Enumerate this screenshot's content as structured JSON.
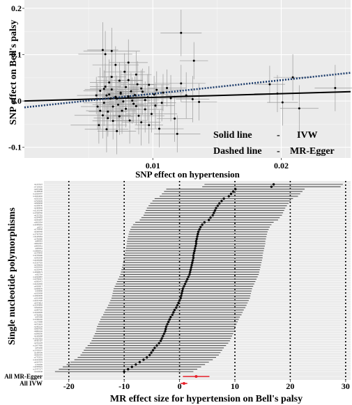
{
  "chart_data": [
    {
      "type": "scatter",
      "title": "",
      "xlabel": "SNP effect on hypertension",
      "ylabel": "SNP effect on Bell's palsy",
      "xlim": [
        0.0,
        0.0254
      ],
      "ylim": [
        -0.123,
        0.218
      ],
      "x_ticks": [
        0.01,
        0.02
      ],
      "x_tick_labels": [
        "0.01",
        "0.02"
      ],
      "y_ticks": [
        -0.1,
        0.0,
        0.1,
        0.2
      ],
      "y_tick_labels": [
        "-0.1",
        "0.0",
        "0.1",
        "0.2"
      ],
      "grid": true,
      "legend": {
        "position": "bottom-right",
        "entries": [
          {
            "label": "Solid line",
            "dash": "-",
            "method": "IVW"
          },
          {
            "label": "Dashed line",
            "dash": "-",
            "method": "MR-Egger"
          }
        ]
      },
      "lines": [
        {
          "method": "IVW",
          "style": "solid",
          "color": "#000000",
          "slope": 0.79,
          "intercept": 0.0
        },
        {
          "method": "MR-Egger",
          "style": "dotted",
          "color": "#1a3a6a",
          "slope": 2.94,
          "intercept": -0.0138
        }
      ],
      "points": [
        {
          "x": 0.0122,
          "y": 0.147,
          "xerr": 0.0016,
          "yerr": 0.05
        },
        {
          "x": 0.0132,
          "y": 0.087,
          "xerr": 0.0011,
          "yerr": 0.04
        },
        {
          "x": 0.0068,
          "y": 0.108,
          "xerr": 0.0022,
          "yerr": 0.05
        },
        {
          "x": 0.0061,
          "y": 0.11,
          "xerr": 0.0012,
          "yerr": 0.06
        },
        {
          "x": 0.0063,
          "y": 0.101,
          "xerr": 0.0021,
          "yerr": 0.05
        },
        {
          "x": 0.0078,
          "y": 0.063,
          "xerr": 0.0016,
          "yerr": 0.04
        },
        {
          "x": 0.0081,
          "y": 0.083,
          "xerr": 0.0015,
          "yerr": 0.05
        },
        {
          "x": 0.0087,
          "y": 0.057,
          "xerr": 0.0012,
          "yerr": 0.05
        },
        {
          "x": 0.0071,
          "y": 0.078,
          "xerr": 0.0018,
          "yerr": 0.04
        },
        {
          "x": 0.0097,
          "y": 0.035,
          "xerr": 0.0016,
          "yerr": 0.04
        },
        {
          "x": 0.0063,
          "y": 0.031,
          "xerr": 0.0012,
          "yerr": 0.05
        },
        {
          "x": 0.0066,
          "y": 0.04,
          "xerr": 0.0015,
          "yerr": 0.05
        },
        {
          "x": 0.0059,
          "y": 0.022,
          "xerr": 0.0013,
          "yerr": 0.05
        },
        {
          "x": 0.0064,
          "y": 0.012,
          "xerr": 0.0017,
          "yerr": 0.04
        },
        {
          "x": 0.0075,
          "y": 0.016,
          "xerr": 0.0011,
          "yerr": 0.05
        },
        {
          "x": 0.0057,
          "y": -0.012,
          "xerr": 0.0013,
          "yerr": 0.05
        },
        {
          "x": 0.0068,
          "y": 0.025,
          "xerr": 0.0021,
          "yerr": 0.05
        },
        {
          "x": 0.0072,
          "y": 0.005,
          "xerr": 0.0013,
          "yerr": 0.05
        },
        {
          "x": 0.0081,
          "y": 0.01,
          "xerr": 0.0013,
          "yerr": 0.05
        },
        {
          "x": 0.0085,
          "y": -0.006,
          "xerr": 0.0019,
          "yerr": 0.04
        },
        {
          "x": 0.0065,
          "y": -0.023,
          "xerr": 0.0015,
          "yerr": 0.05
        },
        {
          "x": 0.0061,
          "y": -0.031,
          "xerr": 0.0022,
          "yerr": 0.05
        },
        {
          "x": 0.0069,
          "y": -0.043,
          "xerr": 0.0016,
          "yerr": 0.04
        },
        {
          "x": 0.0076,
          "y": -0.021,
          "xerr": 0.0011,
          "yerr": 0.05
        },
        {
          "x": 0.0082,
          "y": -0.042,
          "xerr": 0.0014,
          "yerr": 0.05
        },
        {
          "x": 0.0058,
          "y": -0.052,
          "xerr": 0.0022,
          "yerr": 0.04
        },
        {
          "x": 0.0064,
          "y": -0.061,
          "xerr": 0.0017,
          "yerr": 0.05
        },
        {
          "x": 0.0072,
          "y": -0.065,
          "xerr": 0.0015,
          "yerr": 0.05
        },
        {
          "x": 0.0091,
          "y": -0.046,
          "xerr": 0.0015,
          "yerr": 0.05
        },
        {
          "x": 0.0102,
          "y": -0.01,
          "xerr": 0.0015,
          "yerr": 0.05
        },
        {
          "x": 0.0108,
          "y": 0.018,
          "xerr": 0.0016,
          "yerr": 0.04
        },
        {
          "x": 0.0111,
          "y": 0.028,
          "xerr": 0.0015,
          "yerr": 0.04
        },
        {
          "x": 0.0114,
          "y": 0.006,
          "xerr": 0.0017,
          "yerr": 0.05
        },
        {
          "x": 0.0105,
          "y": -0.06,
          "xerr": 0.0019,
          "yerr": 0.04
        },
        {
          "x": 0.0119,
          "y": -0.071,
          "xerr": 0.0018,
          "yerr": 0.04
        },
        {
          "x": 0.0126,
          "y": 0.012,
          "xerr": 0.0016,
          "yerr": 0.05
        },
        {
          "x": 0.0131,
          "y": 0.004,
          "xerr": 0.0013,
          "yerr": 0.05
        },
        {
          "x": 0.0136,
          "y": -0.002,
          "xerr": 0.0014,
          "yerr": 0.04
        },
        {
          "x": 0.0092,
          "y": 0.02,
          "xerr": 0.0022,
          "yerr": 0.05
        },
        {
          "x": 0.0088,
          "y": 0.036,
          "xerr": 0.0013,
          "yerr": 0.05
        },
        {
          "x": 0.0067,
          "y": 0.005,
          "xerr": 0.0014,
          "yerr": 0.05
        },
        {
          "x": 0.0073,
          "y": -0.008,
          "xerr": 0.002,
          "yerr": 0.05
        },
        {
          "x": 0.0079,
          "y": 0.03,
          "xerr": 0.0012,
          "yerr": 0.05
        },
        {
          "x": 0.0084,
          "y": 0.001,
          "xerr": 0.0014,
          "yerr": 0.05
        },
        {
          "x": 0.0096,
          "y": 0.008,
          "xerr": 0.0014,
          "yerr": 0.05
        },
        {
          "x": 0.0099,
          "y": -0.028,
          "xerr": 0.002,
          "yerr": 0.04
        },
        {
          "x": 0.0094,
          "y": -0.018,
          "xerr": 0.0014,
          "yerr": 0.05
        },
        {
          "x": 0.0062,
          "y": -0.004,
          "xerr": 0.0016,
          "yerr": 0.05
        },
        {
          "x": 0.0056,
          "y": 0.012,
          "xerr": 0.0015,
          "yerr": 0.04
        },
        {
          "x": 0.0074,
          "y": 0.044,
          "xerr": 0.0018,
          "yerr": 0.04
        },
        {
          "x": 0.0089,
          "y": -0.032,
          "xerr": 0.002,
          "yerr": 0.04
        },
        {
          "x": 0.0103,
          "y": 0.024,
          "xerr": 0.002,
          "yerr": 0.04
        },
        {
          "x": 0.0117,
          "y": -0.038,
          "xerr": 0.0014,
          "yerr": 0.05
        },
        {
          "x": 0.0122,
          "y": 0.038,
          "xerr": 0.0019,
          "yerr": 0.04
        },
        {
          "x": 0.0209,
          "y": 0.051,
          "xerr": 0.0015,
          "yerr": 0.05
        },
        {
          "x": 0.0191,
          "y": 0.036,
          "xerr": 0.0012,
          "yerr": 0.04
        },
        {
          "x": 0.0242,
          "y": 0.028,
          "xerr": 0.0016,
          "yerr": 0.05
        },
        {
          "x": 0.0214,
          "y": -0.016,
          "xerr": 0.0015,
          "yerr": 0.05
        },
        {
          "x": 0.0197,
          "y": 0.016,
          "xerr": 0.0018,
          "yerr": 0.04
        },
        {
          "x": 0.0201,
          "y": -0.003,
          "xerr": 0.0012,
          "yerr": 0.05
        },
        {
          "x": 0.0075,
          "y": 0.018,
          "xerr": 0.0011,
          "yerr": 0.04
        },
        {
          "x": 0.0077,
          "y": -0.001,
          "xerr": 0.0011,
          "yerr": 0.04
        },
        {
          "x": 0.0066,
          "y": 0.014,
          "xerr": 0.0011,
          "yerr": 0.04
        },
        {
          "x": 0.0071,
          "y": 0.009,
          "xerr": 0.0011,
          "yerr": 0.04
        },
        {
          "x": 0.0086,
          "y": 0.013,
          "xerr": 0.0011,
          "yerr": 0.04
        },
        {
          "x": 0.0083,
          "y": 0.021,
          "xerr": 0.0011,
          "yerr": 0.04
        },
        {
          "x": 0.0069,
          "y": -0.012,
          "xerr": 0.0011,
          "yerr": 0.04
        },
        {
          "x": 0.0079,
          "y": -0.017,
          "xerr": 0.0011,
          "yerr": 0.04
        },
        {
          "x": 0.0094,
          "y": 0.002,
          "xerr": 0.0011,
          "yerr": 0.04
        },
        {
          "x": 0.0062,
          "y": 0.026,
          "xerr": 0.0011,
          "yerr": 0.04
        },
        {
          "x": 0.0059,
          "y": -0.021,
          "xerr": 0.0011,
          "yerr": 0.04
        },
        {
          "x": 0.0087,
          "y": -0.011,
          "xerr": 0.0011,
          "yerr": 0.04
        },
        {
          "x": 0.0101,
          "y": 0.014,
          "xerr": 0.0011,
          "yerr": 0.04
        },
        {
          "x": 0.0107,
          "y": -0.004,
          "xerr": 0.0011,
          "yerr": 0.04
        },
        {
          "x": 0.0068,
          "y": 0.052,
          "xerr": 0.0011,
          "yerr": 0.04
        },
        {
          "x": 0.0074,
          "y": -0.033,
          "xerr": 0.0011,
          "yerr": 0.04
        },
        {
          "x": 0.0081,
          "y": 0.045,
          "xerr": 0.0011,
          "yerr": 0.04
        },
        {
          "x": 0.0091,
          "y": 0.027,
          "xerr": 0.0011,
          "yerr": 0.04
        },
        {
          "x": 0.0065,
          "y": -0.037,
          "xerr": 0.0011,
          "yerr": 0.04
        },
        {
          "x": 0.0097,
          "y": -0.052,
          "xerr": 0.0011,
          "yerr": 0.04
        }
      ]
    },
    {
      "type": "scatter",
      "title": "",
      "xlabel": "MR effect size for hypertension on Bell's palsy",
      "ylabel": "Single nucleotide polymorphisms",
      "xlim": [
        -24.5,
        30.9
      ],
      "x_ticks": [
        -20,
        -10,
        0,
        10,
        20,
        30
      ],
      "x_tick_labels": [
        "-20",
        "-10",
        "0",
        "10",
        "20",
        "30"
      ],
      "vlines": [
        -20,
        -10,
        0,
        10,
        20,
        30
      ],
      "grid": true,
      "group_labels": [
        "All MR-Egger",
        "All IVW"
      ],
      "group_estimates": [
        {
          "label": "All MR-Egger",
          "estimate": 3.0,
          "lower": 0.6,
          "upper": 5.4,
          "color": "#e8202a"
        },
        {
          "label": "All IVW",
          "estimate": 0.8,
          "lower": 0.2,
          "upper": 1.4,
          "color": "#e8202a"
        }
      ],
      "snp_labels": [
        "rs1173727",
        "rs7129220",
        "rs2071382",
        "rs1458038",
        "rs12656497",
        "rs10224002",
        "rs2521501",
        "rs7515635",
        "rs6595838",
        "rs1689040",
        "rs3184504",
        "rs11191548",
        "rs17608766",
        "rs4757391",
        "rs2594992",
        "rs1004467",
        "rs9815354",
        "rs13359291",
        "rs6271",
        "rs1799945",
        "rs4409766",
        "rs17367504",
        "rs11105354",
        "rs2782980",
        "rs880315",
        "rs8032315",
        "rs6825911",
        "rs805303",
        "rs10850411",
        "rs1378942",
        "rs12705390",
        "rs2932538",
        "rs11066280",
        "rs13107325",
        "rs3735533",
        "rs7070797",
        "rs1530440",
        "rs16998073",
        "rs932764",
        "rs12940887",
        "rs10760117",
        "rs2681472",
        "rs11222084",
        "rs4590817",
        "rs2969070",
        "rs319690",
        "rs1620668",
        "rs10943605",
        "rs2014408",
        "rs11977526",
        "rs4373814",
        "rs12243859",
        "rs3918226",
        "rs1887320",
        "rs10418305",
        "rs7302981",
        "rs633185",
        "rs17080102",
        "rs1275988",
        "rs3774372",
        "rs2493134",
        "rs9687065",
        "rs6891344",
        "rs2898290",
        "rs1446468",
        "rs12627651",
        "rs4387287",
        "rs3741378",
        "rs10077885",
        "rs871606",
        "rs17638167",
        "rs1156725",
        "rs6442101",
        "rs7733331",
        "rs12413409",
        "rs4247374",
        "rs740406",
        "rs11556924",
        "rs17477177",
        "rs1018448"
      ],
      "snp_estimates": [
        17.0,
        16.6,
        10.1,
        9.7,
        9.3,
        8.9,
        8.0,
        7.6,
        7.2,
        6.9,
        6.6,
        6.4,
        6.2,
        6.0,
        5.6,
        5.3,
        4.5,
        4.1,
        3.8,
        3.6,
        3.4,
        3.3,
        3.2,
        3.1,
        3.0,
        3.0,
        2.9,
        2.8,
        2.7,
        2.6,
        2.5,
        2.5,
        2.4,
        2.3,
        2.2,
        2.1,
        2.0,
        1.9,
        1.8,
        1.6,
        1.4,
        1.2,
        1.0,
        0.8,
        0.6,
        0.5,
        0.4,
        0.3,
        0.2,
        0.0,
        -0.2,
        -0.4,
        -0.6,
        -0.9,
        -1.1,
        -1.3,
        -1.6,
        -1.8,
        -2.0,
        -2.2,
        -2.4,
        -2.5,
        -2.6,
        -2.8,
        -3.0,
        -3.2,
        -3.4,
        -3.7,
        -4.1,
        -4.5,
        -4.8,
        -5.1,
        -5.4,
        -5.9,
        -6.5,
        -7.2,
        -7.9,
        -8.6,
        -9.3,
        -10.0
      ],
      "snp_half_width": 12.5
    }
  ]
}
